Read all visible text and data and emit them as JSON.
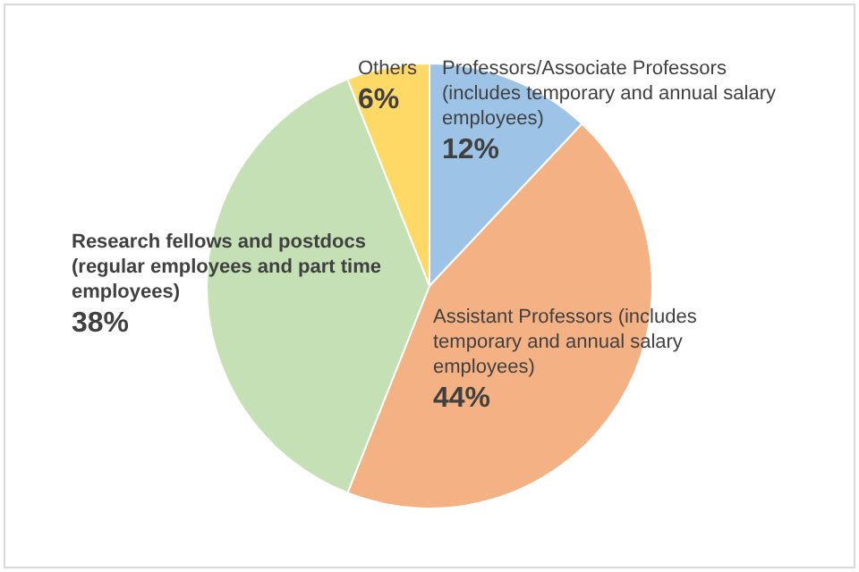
{
  "chart_data": {
    "type": "pie",
    "categories": [
      "Professors/Associate Professors (includes temporary and annual salary employees)",
      "Assistant Professors (includes temporary and annual salary employees)",
      "Research fellows and postdocs (regular employees and part time employees)",
      "Others"
    ],
    "values": [
      12,
      44,
      38,
      6
    ],
    "colors": [
      "#9dc3e6",
      "#f4b183",
      "#c5e0b4",
      "#ffd966"
    ],
    "value_labels": [
      "12%",
      "44%",
      "38%",
      "6%"
    ],
    "legend": false
  }
}
